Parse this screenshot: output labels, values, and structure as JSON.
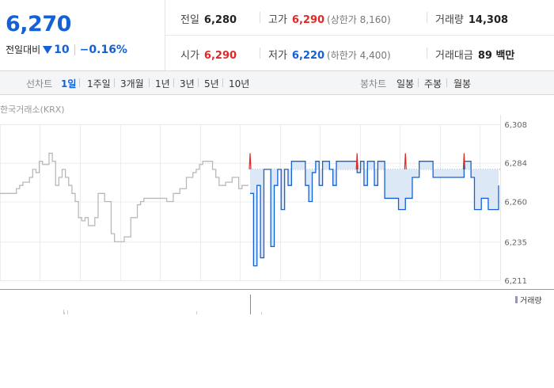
{
  "price": {
    "current": "6,270",
    "change_label": "전일대비",
    "change": "10",
    "change_pct": "−0.16%"
  },
  "stats": {
    "prev_label": "전일",
    "prev": "6,280",
    "high_label": "고가",
    "high": "6,290",
    "upper_limit": "(상한가 8,160)",
    "volume_label": "거래량",
    "volume": "14,308",
    "open_label": "시가",
    "open": "6,290",
    "low_label": "저가",
    "low": "6,220",
    "lower_limit": "(하한가 4,400)",
    "amount_label": "거래대금",
    "amount": "89 백만"
  },
  "tabs": {
    "line_label": "선차트",
    "line": [
      "1일",
      "1주일",
      "3개월",
      "1년",
      "3년",
      "5년",
      "10년"
    ],
    "candle_label": "봉차트",
    "candle": [
      "일봉",
      "주봉",
      "월봉"
    ]
  },
  "exchange": "한국거래소(KRX)",
  "volume_legend": "거래량",
  "colors": {
    "up": "#e12828",
    "down": "#1461d6",
    "prev_day": "#b9b9b9"
  },
  "chart_data": {
    "type": "line",
    "y_ticks": [
      "6,308",
      "6,284",
      "6,260",
      "6,235",
      "6,211"
    ],
    "ylim": [
      6211,
      6308
    ],
    "reference_line": 6280,
    "series": [
      {
        "values": [
          6265,
          6265,
          6265,
          6265,
          6265,
          6268,
          6270,
          6272,
          6272,
          6275,
          6280,
          6278,
          6285,
          6283,
          6283,
          6290,
          6285,
          6270,
          6275,
          6280,
          6275,
          6270,
          6265,
          6260,
          6250,
          6248,
          6250,
          6245,
          6245,
          6250,
          6265,
          6265,
          6260,
          6260,
          6240,
          6235,
          6235,
          6235,
          6238,
          6238,
          6250,
          6250,
          6258,
          6260,
          6262,
          6262,
          6262,
          6262,
          6262,
          6262,
          6262,
          6260,
          6260,
          6265,
          6265,
          6268,
          6268,
          6275,
          6275,
          6278,
          6280,
          6283,
          6285,
          6285,
          6285,
          6280,
          6275,
          6270,
          6270,
          6272,
          6272,
          6275,
          6275,
          6268,
          6270,
          6270,
          6270
        ]
      },
      {
        "values": [
          6265,
          6220,
          6270,
          6225,
          6280,
          6280,
          6232,
          6270,
          6280,
          6255,
          6280,
          6270,
          6285,
          6285,
          6285,
          6285,
          6270,
          6260,
          6278,
          6285,
          6270,
          6285,
          6285,
          6280,
          6270,
          6285,
          6285,
          6285,
          6285,
          6285,
          6285,
          6278,
          6285,
          6270,
          6285,
          6285,
          6270,
          6285,
          6285,
          6262,
          6262,
          6262,
          6262,
          6255,
          6255,
          6262,
          6262,
          6275,
          6275,
          6285,
          6285,
          6285,
          6285,
          6275,
          6275,
          6275,
          6275,
          6275,
          6275,
          6275,
          6275,
          6275,
          6285,
          6285,
          6275,
          6255,
          6255,
          6262,
          6262,
          6255,
          6255,
          6255,
          6270
        ]
      }
    ]
  }
}
